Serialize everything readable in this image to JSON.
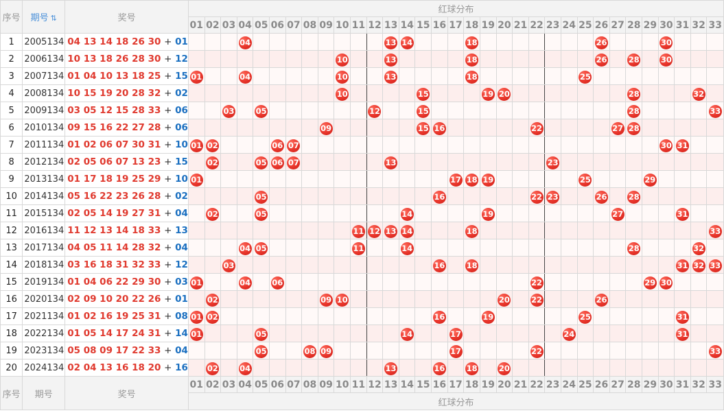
{
  "header": {
    "seq_label": "序号",
    "period_label": "期号",
    "sort_icon": "⇅",
    "draw_label": "奖号",
    "red_dist_label": "红球分布"
  },
  "footer": {
    "seq_label": "序号",
    "period_label": "期号",
    "draw_label": "奖号",
    "red_dist_label": "红球分布"
  },
  "columns": [
    "01",
    "02",
    "03",
    "04",
    "05",
    "06",
    "07",
    "08",
    "09",
    "10",
    "11",
    "12",
    "13",
    "14",
    "15",
    "16",
    "17",
    "18",
    "19",
    "20",
    "21",
    "22",
    "23",
    "24",
    "25",
    "26",
    "27",
    "28",
    "29",
    "30",
    "31",
    "32",
    "33"
  ],
  "colors": {
    "red_ball": "#e8342a",
    "red_text": "#e03a2f",
    "blue_text": "#1a6fc0"
  },
  "rows": [
    {
      "idx": "1",
      "period": "2005134",
      "reds": "04 13 14 18 26 30",
      "plus": "+",
      "blue": "01",
      "balls": [
        "04",
        "13",
        "14",
        "18",
        "26",
        "30"
      ]
    },
    {
      "idx": "2",
      "period": "2006134",
      "reds": "10 13 18 26 28 30",
      "plus": "+",
      "blue": "12",
      "balls": [
        "10",
        "13",
        "18",
        "26",
        "28",
        "30"
      ]
    },
    {
      "idx": "3",
      "period": "2007134",
      "reds": "01 04 10 13 18 25",
      "plus": "+",
      "blue": "15",
      "balls": [
        "01",
        "04",
        "10",
        "13",
        "18",
        "25"
      ]
    },
    {
      "idx": "4",
      "period": "2008134",
      "reds": "10 15 19 20 28 32",
      "plus": "+",
      "blue": "02",
      "balls": [
        "10",
        "15",
        "19",
        "20",
        "28",
        "32"
      ]
    },
    {
      "idx": "5",
      "period": "2009134",
      "reds": "03 05 12 15 28 33",
      "plus": "+",
      "blue": "06",
      "balls": [
        "03",
        "05",
        "12",
        "15",
        "28",
        "33"
      ]
    },
    {
      "idx": "6",
      "period": "2010134",
      "reds": "09 15 16 22 27 28",
      "plus": "+",
      "blue": "06",
      "balls": [
        "09",
        "15",
        "16",
        "22",
        "27",
        "28"
      ]
    },
    {
      "idx": "7",
      "period": "2011134",
      "reds": "01 02 06 07 30 31",
      "plus": "+",
      "blue": "10",
      "balls": [
        "01",
        "02",
        "06",
        "07",
        "30",
        "31"
      ]
    },
    {
      "idx": "8",
      "period": "2012134",
      "reds": "02 05 06 07 13 23",
      "plus": "+",
      "blue": "15",
      "balls": [
        "02",
        "05",
        "06",
        "07",
        "13",
        "23"
      ]
    },
    {
      "idx": "9",
      "period": "2013134",
      "reds": "01 17 18 19 25 29",
      "plus": "+",
      "blue": "10",
      "balls": [
        "01",
        "17",
        "18",
        "19",
        "25",
        "29"
      ]
    },
    {
      "idx": "10",
      "period": "2014134",
      "reds": "05 16 22 23 26 28",
      "plus": "+",
      "blue": "02",
      "balls": [
        "05",
        "16",
        "22",
        "23",
        "26",
        "28"
      ]
    },
    {
      "idx": "11",
      "period": "2015134",
      "reds": "02 05 14 19 27 31",
      "plus": "+",
      "blue": "04",
      "balls": [
        "02",
        "05",
        "14",
        "19",
        "27",
        "31"
      ]
    },
    {
      "idx": "12",
      "period": "2016134",
      "reds": "11 12 13 14 18 33",
      "plus": "+",
      "blue": "13",
      "balls": [
        "11",
        "12",
        "13",
        "14",
        "18",
        "33"
      ]
    },
    {
      "idx": "13",
      "period": "2017134",
      "reds": "04 05 11 14 28 32",
      "plus": "+",
      "blue": "04",
      "balls": [
        "04",
        "05",
        "11",
        "14",
        "28",
        "32"
      ]
    },
    {
      "idx": "14",
      "period": "2018134",
      "reds": "03 16 18 31 32 33",
      "plus": "+",
      "blue": "12",
      "balls": [
        "03",
        "16",
        "18",
        "31",
        "32",
        "33"
      ]
    },
    {
      "idx": "15",
      "period": "2019134",
      "reds": "01 04 06 22 29 30",
      "plus": "+",
      "blue": "03",
      "balls": [
        "01",
        "04",
        "06",
        "22",
        "29",
        "30"
      ]
    },
    {
      "idx": "16",
      "period": "2020134",
      "reds": "02 09 10 20 22 26",
      "plus": "+",
      "blue": "01",
      "balls": [
        "02",
        "09",
        "10",
        "20",
        "22",
        "26"
      ]
    },
    {
      "idx": "17",
      "period": "2021134",
      "reds": "01 02 16 19 25 31",
      "plus": "+",
      "blue": "08",
      "balls": [
        "01",
        "02",
        "16",
        "19",
        "25",
        "31"
      ]
    },
    {
      "idx": "18",
      "period": "2022134",
      "reds": "01 05 14 17 24 31",
      "plus": "+",
      "blue": "14",
      "balls": [
        "01",
        "05",
        "14",
        "17",
        "24",
        "31"
      ]
    },
    {
      "idx": "19",
      "period": "2023134",
      "reds": "05 08 09 17 22 33",
      "plus": "+",
      "blue": "04",
      "balls": [
        "05",
        "08",
        "09",
        "17",
        "22",
        "33"
      ]
    },
    {
      "idx": "20",
      "period": "2024134",
      "reds": "02 04 13 16 18 20",
      "plus": "+",
      "blue": "16",
      "balls": [
        "02",
        "04",
        "13",
        "16",
        "18",
        "20"
      ]
    }
  ]
}
